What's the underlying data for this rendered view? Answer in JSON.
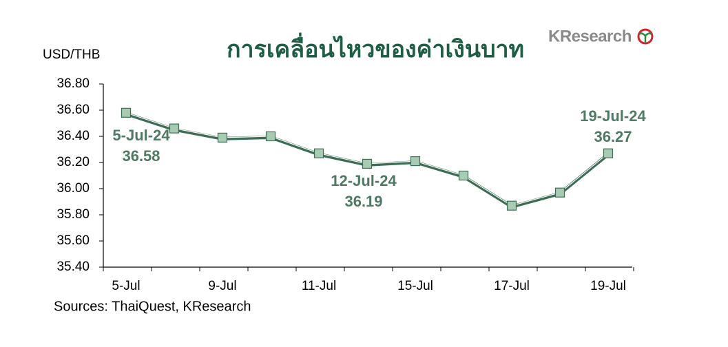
{
  "chart_data": {
    "type": "line",
    "title": "การเคลื่อนไหวของค่าเงินบาท",
    "logo": "KResearch",
    "y_label": "USD/THB",
    "source": "Sources: ThaiQuest, KResearch",
    "categories": [
      "5-Jul",
      null,
      "9-Jul",
      null,
      "11-Jul",
      null,
      "15-Jul",
      null,
      "17-Jul",
      null,
      "19-Jul"
    ],
    "series": [
      {
        "name": "USD/THB",
        "color": "#3d6e55",
        "marker_color": "#a8cbb4",
        "values": [
          36.58,
          36.46,
          36.39,
          36.4,
          36.27,
          36.19,
          36.21,
          36.1,
          35.87,
          35.97,
          36.27
        ]
      }
    ],
    "annotations": [
      "5-Jul-24",
      "12-Jul-24",
      "19-Jul-24"
    ],
    "ylim": [
      35.4,
      36.8
    ],
    "yticks": [
      {
        "value": 35.4,
        "label": "35.40"
      },
      {
        "value": 35.6,
        "label": "35.60"
      },
      {
        "value": 35.8,
        "label": "35.80"
      },
      {
        "value": 36.0,
        "label": "36.00"
      },
      {
        "value": 36.2,
        "label": "36.20"
      },
      {
        "value": 36.4,
        "label": "36.40"
      },
      {
        "value": 36.6,
        "label": "36.60"
      },
      {
        "value": 36.8,
        "label": "36.80"
      }
    ],
    "grid": false
  }
}
